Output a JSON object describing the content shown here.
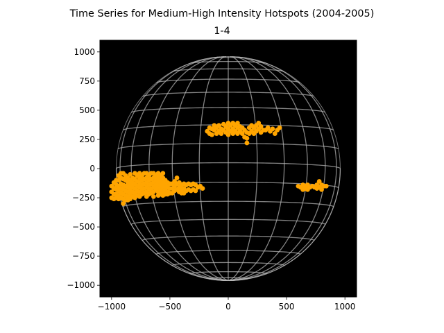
{
  "chart_data": {
    "type": "scatter",
    "title": "Time Series for Medium-High Intensity Hotspots (2004-2005)",
    "subtitle": "1-4",
    "xlabel": "",
    "ylabel": "",
    "xlim": [
      -1100,
      1100
    ],
    "ylim": [
      -1100,
      1100
    ],
    "xticks": [
      -1000,
      -500,
      0,
      500,
      1000
    ],
    "yticks": [
      1000,
      750,
      500,
      250,
      0,
      -250,
      -500,
      -750,
      -1000
    ],
    "xtick_labels": [
      "−1000",
      "−500",
      "0",
      "500",
      "1000"
    ],
    "ytick_labels": [
      "1000",
      "750",
      "500",
      "250",
      "0",
      "−250",
      "−500",
      "−750",
      "−1000"
    ],
    "background": "#000000",
    "marker_color": "#FFA500",
    "grid_color": "#BBBBBB",
    "solar_radius": 960,
    "grid": true,
    "legend": "none",
    "series": [
      {
        "x": [
          -1000,
          -1000,
          -1000,
          -980,
          -980,
          -980,
          -980,
          -960,
          -960,
          -960,
          -960,
          -960,
          -940,
          -940,
          -940,
          -940,
          -940,
          -940,
          -920,
          -920,
          -920,
          -920,
          -920,
          -920,
          -900,
          -900,
          -900,
          -900,
          -900,
          -900,
          -900,
          -880,
          -880,
          -880,
          -880,
          -880,
          -880,
          -860,
          -860,
          -860,
          -860,
          -860,
          -860,
          -840,
          -840,
          -840,
          -840,
          -840,
          -840,
          -820,
          -820,
          -820,
          -820,
          -820,
          -800,
          -800,
          -800,
          -800,
          -800,
          -800,
          -780,
          -780,
          -780,
          -780,
          -780,
          -760,
          -760,
          -760,
          -760,
          -760,
          -760,
          -740,
          -740,
          -740,
          -740,
          -740,
          -720,
          -720,
          -720,
          -720,
          -720,
          -700,
          -700,
          -700,
          -700,
          -700,
          -700,
          -680,
          -680,
          -680,
          -680,
          -680,
          -660,
          -660,
          -660,
          -660,
          -660,
          -640,
          -640,
          -640,
          -640,
          -640,
          -640,
          -620,
          -620,
          -620,
          -620,
          -600,
          -600,
          -600,
          -600,
          -600,
          -600,
          -580,
          -580,
          -580,
          -580,
          -580,
          -560,
          -560,
          -560,
          -560,
          -560,
          -560,
          -540,
          -540,
          -540,
          -540,
          -520,
          -520,
          -520,
          -520,
          -500,
          -500,
          -500,
          -480,
          -480,
          -480,
          -460,
          -460,
          -460,
          -440,
          -440,
          -440,
          -420,
          -420,
          -420,
          -400,
          -400,
          -400,
          -380,
          -380,
          -380,
          -360,
          -360,
          -340,
          -340,
          -320,
          -320,
          -300,
          -300,
          -280,
          -280,
          -260,
          -240,
          -220
        ],
        "y": [
          -150,
          -200,
          -250,
          -120,
          -170,
          -220,
          -260,
          -100,
          -140,
          -180,
          -220,
          -250,
          -60,
          -100,
          -150,
          -190,
          -230,
          -260,
          -40,
          -80,
          -130,
          -170,
          -210,
          -250,
          -40,
          -90,
          -140,
          -180,
          -220,
          -260,
          -300,
          -60,
          -100,
          -150,
          -190,
          -230,
          -270,
          -80,
          -120,
          -160,
          -200,
          -240,
          -270,
          -50,
          -100,
          -140,
          -180,
          -220,
          -260,
          -80,
          -120,
          -160,
          -200,
          -240,
          -40,
          -90,
          -130,
          -170,
          -210,
          -250,
          -60,
          -110,
          -150,
          -190,
          -230,
          -40,
          -80,
          -120,
          -160,
          -200,
          -240,
          -60,
          -100,
          -140,
          -180,
          -220,
          -40,
          -90,
          -130,
          -170,
          -210,
          -40,
          -80,
          -120,
          -160,
          -200,
          -240,
          -60,
          -100,
          -140,
          -180,
          -220,
          -40,
          -90,
          -130,
          -170,
          -210,
          -40,
          -80,
          -120,
          -160,
          -200,
          -240,
          -60,
          -100,
          -140,
          -180,
          -40,
          -80,
          -120,
          -160,
          -200,
          -230,
          -60,
          -100,
          -140,
          -180,
          -220,
          -40,
          -80,
          -120,
          -160,
          -200,
          -230,
          -100,
          -140,
          -180,
          -220,
          -120,
          -160,
          -200,
          -220,
          -130,
          -170,
          -210,
          -130,
          -170,
          -210,
          -110,
          -150,
          -190,
          -80,
          -130,
          -180,
          -120,
          -160,
          -200,
          -140,
          -180,
          -210,
          -130,
          -170,
          -210,
          -140,
          -190,
          -130,
          -180,
          -140,
          -190,
          -130,
          -180,
          -140,
          -190,
          -160,
          -150,
          -170
        ]
      },
      {
        "x": [
          -180,
          -160,
          -160,
          -140,
          -140,
          -120,
          -120,
          -100,
          -100,
          -80,
          -80,
          -60,
          -60,
          -40,
          -40,
          -20,
          -20,
          0,
          0,
          0,
          20,
          20,
          40,
          40,
          40,
          60,
          60,
          80,
          80,
          80,
          100,
          100,
          120,
          120,
          140,
          140,
          160,
          160,
          160,
          180,
          180,
          200,
          200,
          220,
          220,
          240,
          240,
          260,
          260,
          280,
          280,
          300,
          320,
          340,
          360,
          380,
          400,
          420,
          440
        ],
        "y": [
          320,
          300,
          350,
          290,
          340,
          330,
          370,
          300,
          350,
          320,
          370,
          300,
          340,
          330,
          380,
          310,
          360,
          290,
          340,
          390,
          320,
          370,
          300,
          340,
          390,
          320,
          370,
          300,
          350,
          390,
          320,
          360,
          300,
          350,
          270,
          330,
          220,
          260,
          310,
          300,
          350,
          320,
          370,
          300,
          350,
          320,
          370,
          340,
          390,
          310,
          360,
          330,
          330,
          350,
          320,
          340,
          300,
          330,
          350
        ]
      },
      {
        "x": [
          600,
          620,
          640,
          640,
          660,
          660,
          680,
          680,
          700,
          720,
          740,
          760,
          760,
          780,
          780,
          800,
          800,
          820,
          840
        ],
        "y": [
          -150,
          -160,
          -140,
          -180,
          -150,
          -170,
          -140,
          -180,
          -160,
          -150,
          -160,
          -140,
          -170,
          -110,
          -160,
          -140,
          -180,
          -150,
          -150
        ]
      }
    ]
  }
}
